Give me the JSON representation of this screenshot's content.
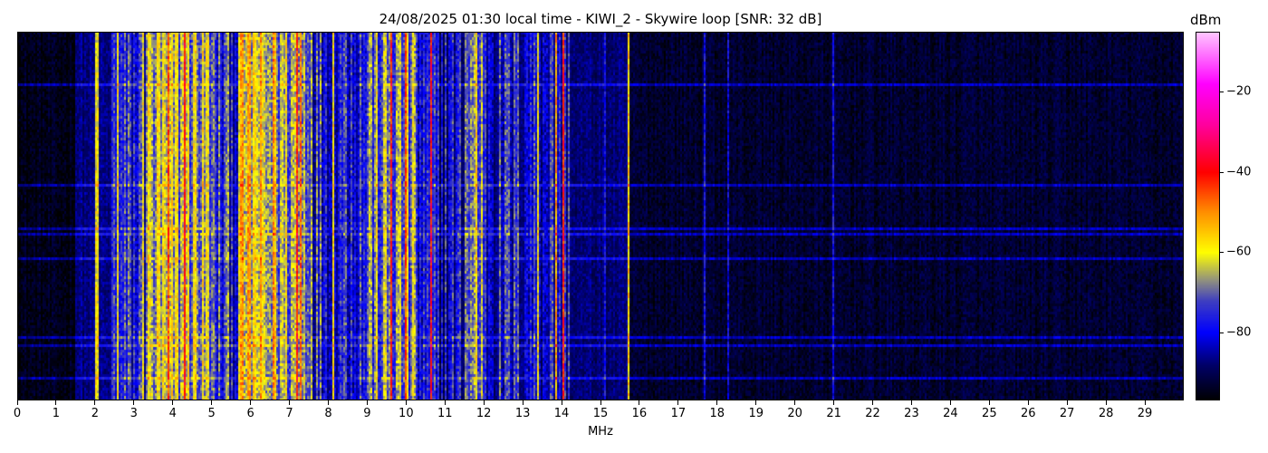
{
  "chart_data": {
    "type": "heatmap",
    "title": "24/08/2025 01:30 local time - KIWI_2 - Skywire loop [SNR: 32 dB]",
    "xlabel": "MHz",
    "ylabel": "",
    "xlim": [
      0,
      30
    ],
    "x_ticks": [
      "0",
      "1",
      "2",
      "3",
      "4",
      "5",
      "6",
      "7",
      "8",
      "9",
      "10",
      "11",
      "12",
      "13",
      "14",
      "15",
      "16",
      "17",
      "18",
      "19",
      "20",
      "21",
      "22",
      "23",
      "24",
      "25",
      "26",
      "27",
      "28",
      "29"
    ],
    "y_ticks": [],
    "colorbar": {
      "label": "dBm",
      "range": [
        -97,
        -5
      ],
      "ticks": [
        -20,
        -40,
        -60,
        -80
      ],
      "tick_labels": [
        "−20",
        "−40",
        "−60",
        "−80"
      ],
      "colormap": [
        {
          "dbm": -97,
          "color": "#000000"
        },
        {
          "dbm": -88,
          "color": "#00006a"
        },
        {
          "dbm": -80,
          "color": "#0000ff"
        },
        {
          "dbm": -72,
          "color": "#4040c0"
        },
        {
          "dbm": -67,
          "color": "#909080"
        },
        {
          "dbm": -60,
          "color": "#ffff00"
        },
        {
          "dbm": -50,
          "color": "#ff9000"
        },
        {
          "dbm": -40,
          "color": "#ff0000"
        },
        {
          "dbm": -28,
          "color": "#ff00a0"
        },
        {
          "dbm": -18,
          "color": "#ff00ff"
        },
        {
          "dbm": -5,
          "color": "#ffc8ff"
        }
      ]
    },
    "bands_mhz_dbm": [
      {
        "from": 0.0,
        "to": 1.5,
        "level": -95
      },
      {
        "from": 1.5,
        "to": 2.4,
        "level": -87
      },
      {
        "from": 2.4,
        "to": 3.3,
        "level": -78
      },
      {
        "from": 3.3,
        "to": 5.0,
        "level": -66
      },
      {
        "from": 5.0,
        "to": 5.7,
        "level": -76
      },
      {
        "from": 5.7,
        "to": 6.3,
        "level": -61
      },
      {
        "from": 6.3,
        "to": 7.6,
        "level": -66
      },
      {
        "from": 7.6,
        "to": 9.0,
        "level": -76
      },
      {
        "from": 9.0,
        "to": 10.3,
        "level": -70
      },
      {
        "from": 10.3,
        "to": 11.5,
        "level": -81
      },
      {
        "from": 11.5,
        "to": 12.0,
        "level": -70
      },
      {
        "from": 12.0,
        "to": 14.25,
        "level": -79
      },
      {
        "from": 14.25,
        "to": 15.75,
        "level": -88
      },
      {
        "from": 15.75,
        "to": 30.0,
        "level": -93
      }
    ],
    "lines_mhz_dbm": [
      {
        "f": 2.05,
        "level": -60
      },
      {
        "f": 2.6,
        "level": -60
      },
      {
        "f": 3.25,
        "level": -60
      },
      {
        "f": 3.9,
        "level": -45
      },
      {
        "f": 4.3,
        "level": -40
      },
      {
        "f": 4.6,
        "level": -58
      },
      {
        "f": 6.0,
        "level": -58
      },
      {
        "f": 6.6,
        "level": -50
      },
      {
        "f": 7.2,
        "level": -42
      },
      {
        "f": 7.3,
        "level": -48
      },
      {
        "f": 8.15,
        "level": -58
      },
      {
        "f": 9.6,
        "level": -42
      },
      {
        "f": 10.0,
        "level": -45
      },
      {
        "f": 10.65,
        "level": -40
      },
      {
        "f": 11.8,
        "level": -58
      },
      {
        "f": 13.4,
        "level": -60
      },
      {
        "f": 13.85,
        "level": -52
      },
      {
        "f": 14.05,
        "level": -42
      },
      {
        "f": 15.1,
        "level": -78
      },
      {
        "f": 15.72,
        "level": -57
      },
      {
        "f": 17.7,
        "level": -78
      },
      {
        "f": 18.3,
        "level": -80
      },
      {
        "f": 21.0,
        "level": -78
      }
    ]
  }
}
